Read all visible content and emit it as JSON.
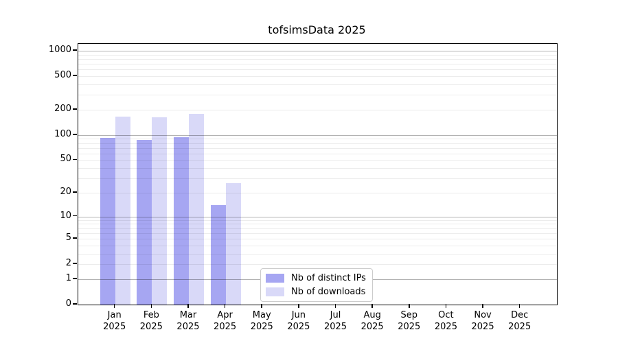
{
  "chart_data": {
    "type": "bar",
    "title": "tofsimsData 2025",
    "x_categories": [
      "Jan",
      "Feb",
      "Mar",
      "Apr",
      "May",
      "Jun",
      "Jul",
      "Aug",
      "Sep",
      "Oct",
      "Nov",
      "Dec"
    ],
    "x_year_label": "2025",
    "series": [
      {
        "key": "distinct-ips",
        "name": "Nb of distinct IPs",
        "color": "#a6a6f2",
        "values": [
          92,
          88,
          94,
          14,
          0,
          0,
          0,
          0,
          0,
          0,
          0,
          0
        ]
      },
      {
        "key": "downloads",
        "name": "Nb of downloads",
        "color": "#d9d9f8",
        "values": [
          166,
          164,
          179,
          26,
          0,
          0,
          0,
          0,
          0,
          0,
          0,
          0
        ]
      }
    ],
    "y_axis": {
      "scale": "log1p",
      "ticks": [
        0,
        1,
        2,
        5,
        10,
        20,
        50,
        100,
        200,
        500,
        1000
      ],
      "major_gridlines": [
        1,
        10,
        100,
        1000
      ],
      "minor_gridlines": [
        2,
        3,
        4,
        5,
        6,
        7,
        8,
        9,
        20,
        30,
        40,
        50,
        60,
        70,
        80,
        90,
        200,
        300,
        400,
        500,
        600,
        700,
        800,
        900
      ],
      "ylim": [
        0,
        1000
      ]
    },
    "legend": {
      "position": "bottom-center"
    },
    "grid": "on",
    "background": "#ffffff"
  }
}
